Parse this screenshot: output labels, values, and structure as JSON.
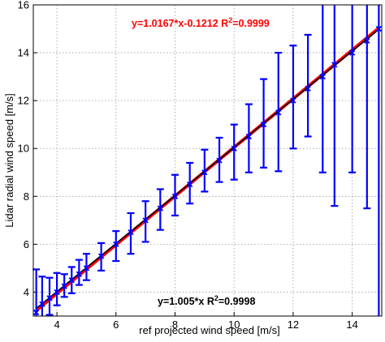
{
  "chart_data": {
    "type": "scatter",
    "xlabel": "ref projected wind speed [m/s]",
    "ylabel": "Lidar radial wind speed [m/s]",
    "xlim": [
      3.2,
      15.0
    ],
    "ylim": [
      3.0,
      16.0
    ],
    "xticks": [
      "4",
      "6",
      "8",
      "10",
      "12",
      "14"
    ],
    "yticks": [
      "4",
      "6",
      "8",
      "10",
      "12",
      "14",
      "16"
    ],
    "grid": true,
    "colors": {
      "errorbar": "#0000ff",
      "marker": "#0000ff",
      "fit_red": "#ff0000",
      "fit_black": "#000000"
    },
    "annotations": {
      "red_fit": {
        "eq": "y=1.0167*x-0.1212  R",
        "sup": "2",
        "val": "=0.9999"
      },
      "black_fit": {
        "eq": "y=1.005*x  R",
        "sup": "2",
        "val": "=0.9998"
      }
    },
    "fits": [
      {
        "slope": 1.0167,
        "intercept": -0.1212,
        "color": "#ff0000"
      },
      {
        "slope": 1.005,
        "intercept": 0.0,
        "color": "#000000"
      }
    ],
    "points": [
      {
        "x": 3.3,
        "y": 3.15,
        "lo": 3.0,
        "hi": 4.95
      },
      {
        "x": 3.5,
        "y": 3.5,
        "lo": 3.0,
        "hi": 4.65
      },
      {
        "x": 3.75,
        "y": 3.75,
        "lo": 3.05,
        "hi": 4.6
      },
      {
        "x": 4.0,
        "y": 4.0,
        "lo": 3.45,
        "hi": 4.8
      },
      {
        "x": 4.25,
        "y": 4.25,
        "lo": 3.8,
        "hi": 4.75
      },
      {
        "x": 4.5,
        "y": 4.5,
        "lo": 3.95,
        "hi": 5.05
      },
      {
        "x": 4.75,
        "y": 4.75,
        "lo": 4.3,
        "hi": 5.35
      },
      {
        "x": 5.0,
        "y": 5.0,
        "lo": 4.5,
        "hi": 5.6
      },
      {
        "x": 5.5,
        "y": 5.5,
        "lo": 4.9,
        "hi": 6.05
      },
      {
        "x": 6.0,
        "y": 6.0,
        "lo": 5.3,
        "hi": 6.55
      },
      {
        "x": 6.5,
        "y": 6.5,
        "lo": 5.6,
        "hi": 7.3
      },
      {
        "x": 7.0,
        "y": 7.0,
        "lo": 6.1,
        "hi": 7.8
      },
      {
        "x": 7.5,
        "y": 7.5,
        "lo": 6.6,
        "hi": 8.3
      },
      {
        "x": 8.0,
        "y": 8.0,
        "lo": 7.2,
        "hi": 8.9
      },
      {
        "x": 8.5,
        "y": 8.5,
        "lo": 7.7,
        "hi": 9.4
      },
      {
        "x": 9.0,
        "y": 9.0,
        "lo": 8.2,
        "hi": 9.95
      },
      {
        "x": 9.5,
        "y": 9.5,
        "lo": 8.6,
        "hi": 10.45
      },
      {
        "x": 10.0,
        "y": 10.0,
        "lo": 8.7,
        "hi": 11.0
      },
      {
        "x": 10.5,
        "y": 10.5,
        "lo": 9.0,
        "hi": 11.85
      },
      {
        "x": 11.0,
        "y": 11.0,
        "lo": 9.2,
        "hi": 12.9
      },
      {
        "x": 11.5,
        "y": 11.5,
        "lo": 9.05,
        "hi": 14.0
      },
      {
        "x": 12.0,
        "y": 12.0,
        "lo": 10.0,
        "hi": 14.3
      },
      {
        "x": 12.5,
        "y": 12.5,
        "lo": 10.5,
        "hi": 14.75
      },
      {
        "x": 13.0,
        "y": 13.0,
        "lo": 9.0,
        "hi": 16.0
      },
      {
        "x": 13.4,
        "y": 13.5,
        "lo": 7.6,
        "hi": 16.0
      },
      {
        "x": 14.0,
        "y": 14.0,
        "lo": 9.0,
        "hi": 16.0
      },
      {
        "x": 14.5,
        "y": 14.5,
        "lo": 7.5,
        "hi": 16.0
      },
      {
        "x": 14.9,
        "y": 15.0,
        "lo": 3.0,
        "hi": 16.0
      }
    ]
  }
}
